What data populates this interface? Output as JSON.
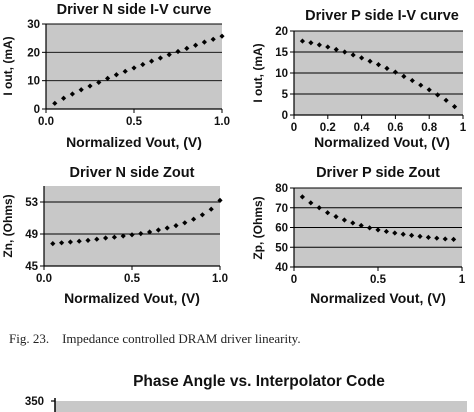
{
  "caption": "Fig. 23.    Impedance controlled DRAM driver linearity.",
  "colors": {
    "plot_bg": "#c8c8c8",
    "marker": "#000000",
    "grid": "#000000"
  },
  "chart_data": [
    {
      "id": "n-iv",
      "type": "scatter",
      "title": "Driver N side I-V curve",
      "xlabel": "Normalized Vout, (V)",
      "ylabel": "I out, (mA)",
      "xlim": [
        0,
        1
      ],
      "ylim": [
        0,
        30
      ],
      "xticks": [
        "0.0",
        "0.5",
        "1.0"
      ],
      "xtick_values": [
        0,
        0.5,
        1
      ],
      "yticks": [
        "0",
        "10",
        "20",
        "30"
      ],
      "ytick_values": [
        0,
        10,
        20,
        30
      ],
      "grid": true,
      "marker": "diamond",
      "x": [
        0.05,
        0.1,
        0.15,
        0.2,
        0.25,
        0.3,
        0.35,
        0.4,
        0.45,
        0.5,
        0.55,
        0.6,
        0.65,
        0.7,
        0.75,
        0.8,
        0.85,
        0.9,
        0.95,
        1.0
      ],
      "y": [
        2.0,
        3.8,
        5.3,
        6.8,
        8.1,
        9.4,
        10.8,
        12.1,
        13.3,
        14.5,
        15.7,
        16.9,
        18.0,
        19.2,
        20.3,
        21.4,
        22.5,
        23.6,
        24.6,
        25.7
      ]
    },
    {
      "id": "p-iv",
      "type": "scatter",
      "title": "Driver P side I-V curve",
      "xlabel": "Normalized Vout, (V)",
      "ylabel": "I out, (mA)",
      "xlim": [
        0,
        1
      ],
      "ylim": [
        0,
        20
      ],
      "xticks": [
        "0",
        "0.2",
        "0.4",
        "0.6",
        "0.8",
        "1"
      ],
      "xtick_values": [
        0,
        0.2,
        0.4,
        0.6,
        0.8,
        1
      ],
      "yticks": [
        "0",
        "5",
        "10",
        "15",
        "20"
      ],
      "ytick_values": [
        0,
        5,
        10,
        15,
        20
      ],
      "grid": true,
      "marker": "diamond",
      "x": [
        0.05,
        0.1,
        0.15,
        0.2,
        0.25,
        0.3,
        0.35,
        0.4,
        0.45,
        0.5,
        0.55,
        0.6,
        0.65,
        0.7,
        0.75,
        0.8,
        0.85,
        0.9,
        0.95
      ],
      "y": [
        17.6,
        17.2,
        16.7,
        16.2,
        15.6,
        15.0,
        14.3,
        13.6,
        12.8,
        12.0,
        11.1,
        10.2,
        9.2,
        8.2,
        7.1,
        6.0,
        4.8,
        3.5,
        2.0
      ]
    },
    {
      "id": "n-zout",
      "type": "scatter",
      "title": "Driver N side Zout",
      "xlabel": "Normalized Vout, (V)",
      "ylabel": "Zn, (Ohms)",
      "xlim": [
        0,
        1
      ],
      "ylim": [
        45,
        55
      ],
      "xticks": [
        "0.0",
        "0.5",
        "1.0"
      ],
      "xtick_values": [
        0,
        0.5,
        1
      ],
      "yticks": [
        "45",
        "49",
        "53"
      ],
      "ytick_values": [
        45,
        49,
        53
      ],
      "grid": true,
      "marker": "diamond",
      "x": [
        0.05,
        0.1,
        0.15,
        0.2,
        0.25,
        0.3,
        0.35,
        0.4,
        0.45,
        0.5,
        0.55,
        0.6,
        0.65,
        0.7,
        0.75,
        0.8,
        0.85,
        0.9,
        0.95,
        1.0
      ],
      "y": [
        47.8,
        47.9,
        48.0,
        48.1,
        48.2,
        48.35,
        48.5,
        48.6,
        48.75,
        48.9,
        49.05,
        49.25,
        49.5,
        49.75,
        50.05,
        50.4,
        50.85,
        51.4,
        52.1,
        53.2
      ]
    },
    {
      "id": "p-zout",
      "type": "scatter",
      "title": "Driver P side Zout",
      "xlabel": "Normalized Vout, (V)",
      "ylabel": "Zp, (Ohms)",
      "xlim": [
        0,
        1
      ],
      "ylim": [
        40,
        80
      ],
      "xticks": [
        "0",
        "0.5",
        "1"
      ],
      "xtick_values": [
        0,
        0.5,
        1
      ],
      "yticks": [
        "40",
        "50",
        "60",
        "70",
        "80"
      ],
      "ytick_values": [
        40,
        50,
        60,
        70,
        80
      ],
      "grid": true,
      "marker": "diamond",
      "x": [
        0.05,
        0.1,
        0.15,
        0.2,
        0.25,
        0.3,
        0.35,
        0.4,
        0.45,
        0.5,
        0.55,
        0.6,
        0.65,
        0.7,
        0.75,
        0.8,
        0.85,
        0.9,
        0.95
      ],
      "y": [
        75.5,
        72.5,
        70.0,
        67.5,
        65.5,
        63.8,
        62.3,
        61.0,
        59.8,
        58.8,
        58.0,
        57.2,
        56.6,
        56.0,
        55.5,
        55.0,
        54.6,
        54.2,
        54.0
      ]
    },
    {
      "id": "phase",
      "type": "line",
      "title": "Phase Angle vs. Interpolator Code",
      "yticks": [
        "350"
      ],
      "ytick_values": [
        350
      ],
      "ylim": [
        0,
        350
      ],
      "grid": true,
      "x": [],
      "y": []
    }
  ]
}
